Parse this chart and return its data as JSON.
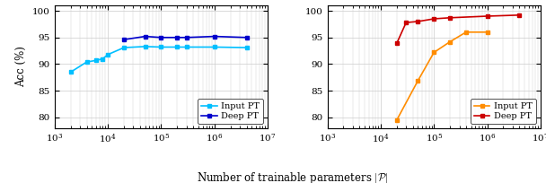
{
  "left": {
    "input_pt_x": [
      2000,
      4000,
      6000,
      8000,
      10000,
      20000,
      50000,
      100000,
      200000,
      300000,
      1000000,
      4000000
    ],
    "input_pt_y": [
      88.5,
      90.4,
      90.7,
      91.0,
      91.8,
      93.1,
      93.3,
      93.2,
      93.2,
      93.2,
      93.2,
      93.1
    ],
    "deep_pt_x": [
      20000,
      50000,
      100000,
      200000,
      300000,
      1000000,
      4000000
    ],
    "deep_pt_y": [
      94.6,
      95.2,
      95.0,
      95.0,
      95.0,
      95.2,
      95.0
    ],
    "ylim": [
      78,
      101
    ],
    "yticks": [
      80,
      85,
      90,
      95,
      100
    ],
    "ylabel": "Acc (%)",
    "legend_loc": "lower right",
    "input_color": "#00bfff",
    "deep_color": "#0000cc"
  },
  "right": {
    "input_pt_x": [
      20000,
      50000,
      100000,
      200000,
      400000,
      1000000
    ],
    "input_pt_y": [
      79.5,
      86.9,
      92.2,
      94.2,
      96.0,
      96.0
    ],
    "deep_pt_x": [
      20000,
      30000,
      50000,
      100000,
      200000,
      1000000,
      4000000
    ],
    "deep_pt_y": [
      93.9,
      97.8,
      98.0,
      98.5,
      98.7,
      99.0,
      99.2
    ],
    "ylim": [
      78,
      101
    ],
    "yticks": [
      80,
      85,
      90,
      95,
      100
    ],
    "legend_loc": "lower right",
    "input_color": "#ff8c00",
    "deep_color": "#cc0000"
  },
  "xlabel": "Number of trainable parameters $|\\mathcal{P}|$",
  "xlim": [
    1000,
    10000000
  ],
  "input_label": "Input PT",
  "deep_label": "Deep PT",
  "grid_color": "#cccccc",
  "marker": "s",
  "marker_deep": "s",
  "linewidth": 1.2,
  "markersize": 3.5,
  "fontsize": 8.5
}
